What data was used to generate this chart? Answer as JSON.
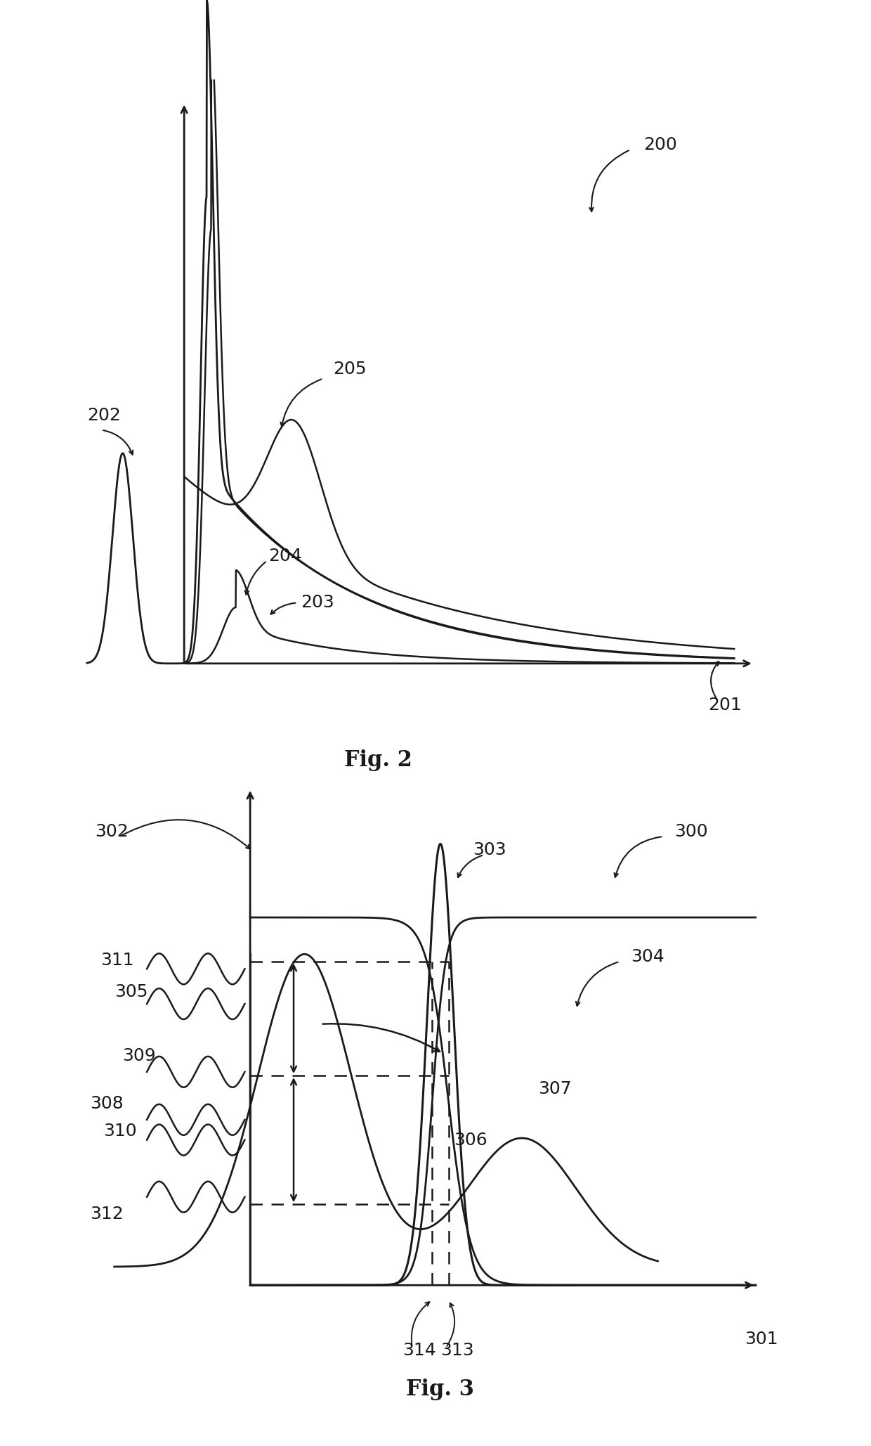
{
  "fig_width": 12.4,
  "fig_height": 20.57,
  "background_color": "#ffffff",
  "line_color": "#1a1a1a",
  "fig2": {
    "label": "Fig. 2",
    "ref_200": "200",
    "ref_201": "201",
    "ref_202": "202",
    "ref_203": "203",
    "ref_204": "204",
    "ref_205": "205"
  },
  "fig3": {
    "label": "Fig. 3",
    "ref_300": "300",
    "ref_301": "301",
    "ref_302": "302",
    "ref_303": "303",
    "ref_304": "304",
    "ref_305": "305",
    "ref_306": "306",
    "ref_307": "307",
    "ref_308": "308",
    "ref_309": "309",
    "ref_310": "310",
    "ref_311": "311",
    "ref_312": "312",
    "ref_313": "313",
    "ref_314": "314"
  }
}
